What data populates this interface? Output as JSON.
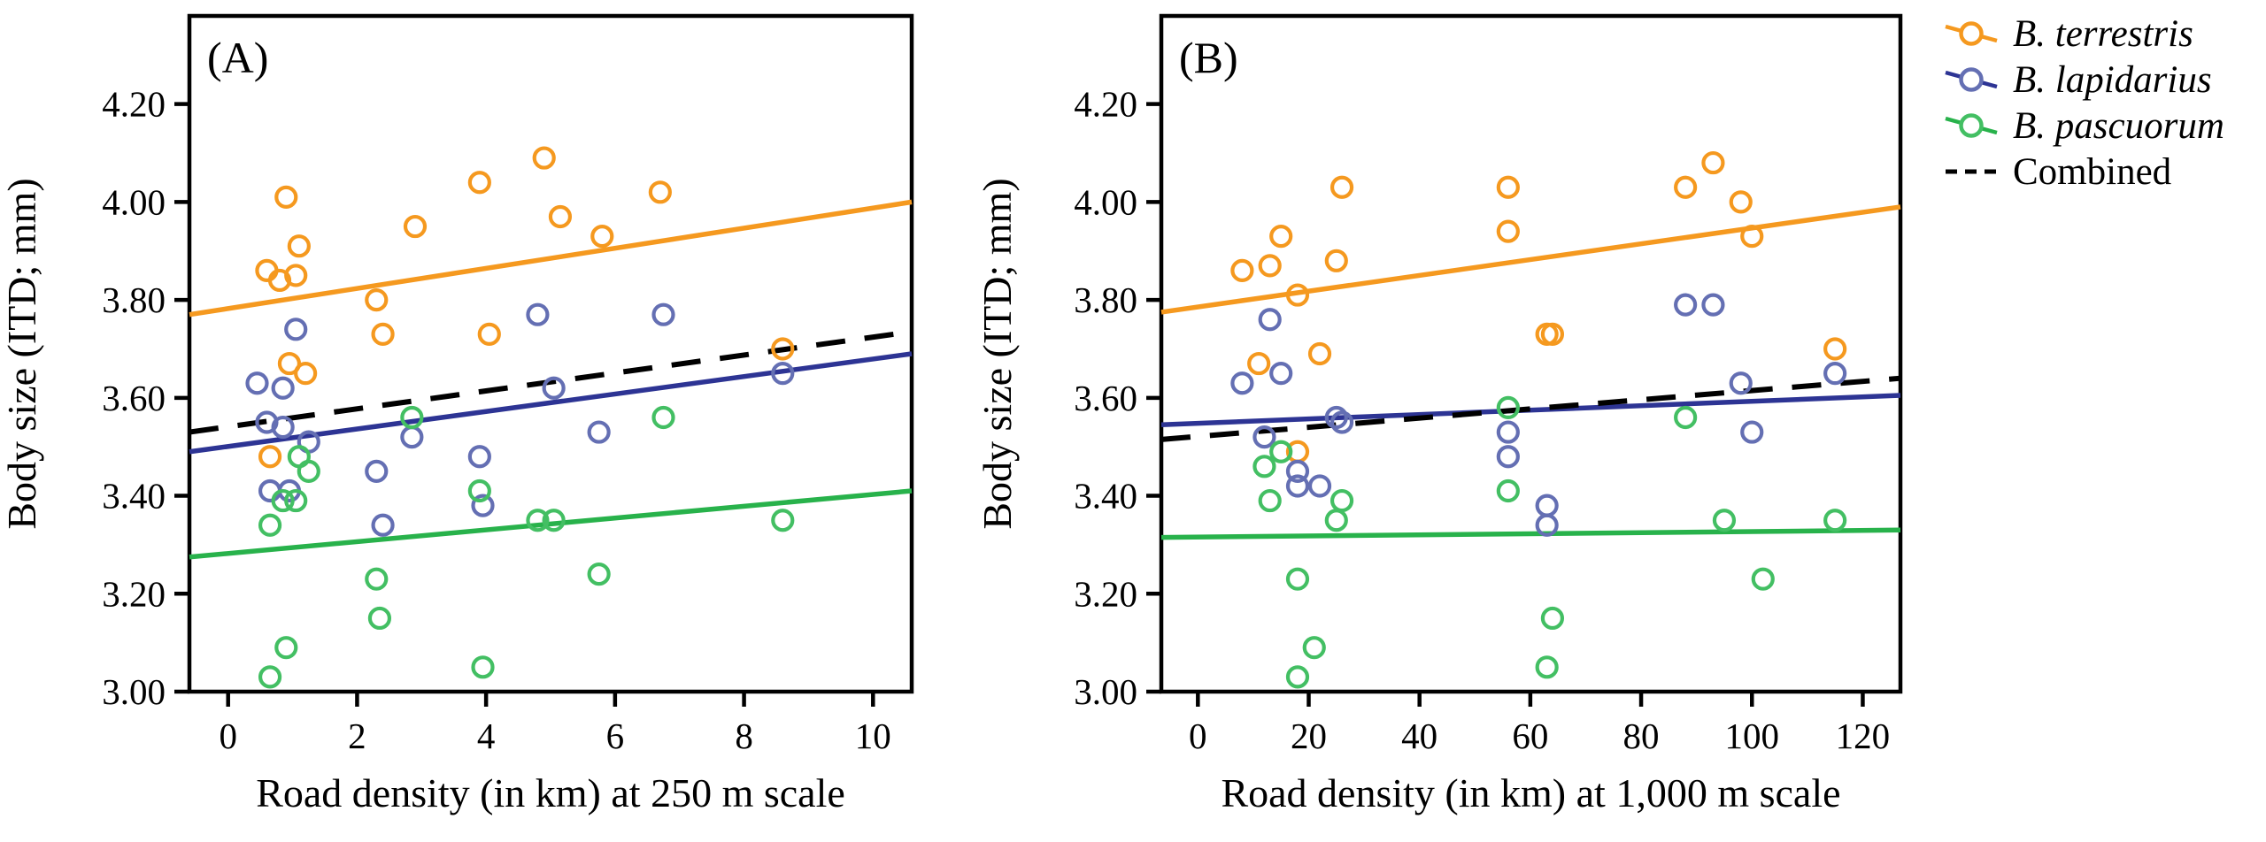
{
  "figure": {
    "background": "#ffffff",
    "y_axis_label": "Body size (ITD; mm)",
    "legend": [
      {
        "label": "B. terrestris",
        "line_color": "#F5991F",
        "marker_color": "#F5991F",
        "style": "solid",
        "italic": true
      },
      {
        "label": "B. lapidarius",
        "line_color": "#2D3494",
        "marker_color": "#646FB3",
        "style": "solid",
        "italic": true
      },
      {
        "label": "B. pascuorum",
        "line_color": "#28B24B",
        "marker_color": "#43BF63",
        "style": "solid",
        "italic": true
      },
      {
        "label": "Combined",
        "line_color": "#000000",
        "marker_color": "#000000",
        "style": "dashed",
        "italic": false
      }
    ]
  },
  "chart_data": [
    {
      "type": "scatter",
      "panel_label": "(A)",
      "xlabel": "Road density (in km) at 250 m scale",
      "ylabel": "Body size (ITD; mm)",
      "xlim": [
        -0.6,
        10.6
      ],
      "ylim": [
        3.0,
        4.38
      ],
      "x_ticks": [
        0,
        2,
        4,
        6,
        8,
        10
      ],
      "x_tick_labels": [
        "0",
        "2",
        "4",
        "6",
        "8",
        "10"
      ],
      "y_ticks": [
        3.0,
        3.2,
        3.4,
        3.6,
        3.8,
        4.0,
        4.2
      ],
      "y_tick_labels": [
        "3.00",
        "3.20",
        "3.40",
        "3.60",
        "3.80",
        "4.00",
        "4.20"
      ],
      "grid": false,
      "series": [
        {
          "name": "B. terrestris",
          "marker_color": "#F5991F",
          "line_color": "#F5991F",
          "dashed": false,
          "points": [
            [
              0.9,
              4.01
            ],
            [
              3.9,
              4.04
            ],
            [
              4.9,
              4.09
            ],
            [
              5.15,
              3.97
            ],
            [
              6.7,
              4.02
            ],
            [
              5.8,
              3.93
            ],
            [
              2.9,
              3.95
            ],
            [
              1.1,
              3.91
            ],
            [
              0.6,
              3.86
            ],
            [
              0.8,
              3.84
            ],
            [
              1.05,
              3.85
            ],
            [
              2.3,
              3.8
            ],
            [
              2.4,
              3.73
            ],
            [
              4.05,
              3.73
            ],
            [
              8.6,
              3.7
            ],
            [
              0.95,
              3.67
            ],
            [
              1.2,
              3.65
            ],
            [
              0.65,
              3.48
            ]
          ],
          "trend": {
            "x": [
              -0.6,
              10.6
            ],
            "y": [
              3.77,
              4.0
            ]
          }
        },
        {
          "name": "B. lapidarius",
          "marker_color": "#646FB3",
          "line_color": "#2D3494",
          "dashed": false,
          "points": [
            [
              1.05,
              3.74
            ],
            [
              0.45,
              3.63
            ],
            [
              0.85,
              3.62
            ],
            [
              0.6,
              3.55
            ],
            [
              0.85,
              3.54
            ],
            [
              1.25,
              3.51
            ],
            [
              0.65,
              3.41
            ],
            [
              0.95,
              3.41
            ],
            [
              2.85,
              3.52
            ],
            [
              2.3,
              3.45
            ],
            [
              2.4,
              3.34
            ],
            [
              3.9,
              3.48
            ],
            [
              3.95,
              3.38
            ],
            [
              4.8,
              3.77
            ],
            [
              5.05,
              3.62
            ],
            [
              5.75,
              3.53
            ],
            [
              6.75,
              3.77
            ],
            [
              8.6,
              3.65
            ]
          ],
          "trend": {
            "x": [
              -0.6,
              10.6
            ],
            "y": [
              3.49,
              3.69
            ]
          }
        },
        {
          "name": "B. pascuorum",
          "marker_color": "#43BF63",
          "line_color": "#28B24B",
          "dashed": false,
          "points": [
            [
              1.1,
              3.48
            ],
            [
              1.25,
              3.45
            ],
            [
              0.85,
              3.39
            ],
            [
              1.05,
              3.39
            ],
            [
              0.65,
              3.34
            ],
            [
              0.9,
              3.09
            ],
            [
              0.65,
              3.03
            ],
            [
              2.85,
              3.56
            ],
            [
              2.3,
              3.23
            ],
            [
              2.35,
              3.15
            ],
            [
              3.9,
              3.41
            ],
            [
              3.95,
              3.05
            ],
            [
              4.8,
              3.35
            ],
            [
              5.05,
              3.35
            ],
            [
              5.75,
              3.24
            ],
            [
              6.75,
              3.56
            ],
            [
              8.6,
              3.35
            ]
          ],
          "trend": {
            "x": [
              -0.6,
              10.6
            ],
            "y": [
              3.275,
              3.41
            ]
          }
        },
        {
          "name": "Combined",
          "marker_color": "#000000",
          "line_color": "#000000",
          "dashed": true,
          "points": [],
          "trend": {
            "x": [
              -0.6,
              10.6
            ],
            "y": [
              3.53,
              3.735
            ]
          }
        }
      ]
    },
    {
      "type": "scatter",
      "panel_label": "(B)",
      "xlabel": "Road density (in km) at 1,000 m scale",
      "ylabel": "Body size (ITD; mm)",
      "xlim": [
        -6.6,
        126.8
      ],
      "ylim": [
        3.0,
        4.38
      ],
      "x_ticks": [
        0,
        20,
        40,
        60,
        80,
        100,
        120
      ],
      "x_tick_labels": [
        "0",
        "20",
        "40",
        "60",
        "80",
        "100",
        "120"
      ],
      "y_ticks": [
        3.0,
        3.2,
        3.4,
        3.6,
        3.8,
        4.0,
        4.2
      ],
      "y_tick_labels": [
        "3.00",
        "3.20",
        "3.40",
        "3.60",
        "3.80",
        "4.00",
        "4.20"
      ],
      "grid": false,
      "series": [
        {
          "name": "B. terrestris",
          "marker_color": "#F5991F",
          "line_color": "#F5991F",
          "dashed": false,
          "points": [
            [
              8,
              3.86
            ],
            [
              13,
              3.87
            ],
            [
              15,
              3.93
            ],
            [
              18,
              3.81
            ],
            [
              25,
              3.88
            ],
            [
              26,
              4.03
            ],
            [
              11,
              3.67
            ],
            [
              22,
              3.69
            ],
            [
              18,
              3.49
            ],
            [
              56,
              4.03
            ],
            [
              56,
              3.94
            ],
            [
              63,
              3.73
            ],
            [
              64,
              3.73
            ],
            [
              88,
              4.03
            ],
            [
              93,
              4.08
            ],
            [
              98,
              4.0
            ],
            [
              100,
              3.93
            ],
            [
              115,
              3.7
            ]
          ],
          "trend": {
            "x": [
              -6.6,
              126.8
            ],
            "y": [
              3.775,
              3.99
            ]
          }
        },
        {
          "name": "B. lapidarius",
          "marker_color": "#646FB3",
          "line_color": "#2D3494",
          "dashed": false,
          "points": [
            [
              13,
              3.76
            ],
            [
              15,
              3.65
            ],
            [
              8,
              3.63
            ],
            [
              25,
              3.56
            ],
            [
              26,
              3.55
            ],
            [
              12,
              3.52
            ],
            [
              18,
              3.45
            ],
            [
              18,
              3.42
            ],
            [
              22,
              3.42
            ],
            [
              56,
              3.53
            ],
            [
              56,
              3.48
            ],
            [
              63,
              3.38
            ],
            [
              63,
              3.34
            ],
            [
              88,
              3.79
            ],
            [
              93,
              3.79
            ],
            [
              98,
              3.63
            ],
            [
              100,
              3.53
            ],
            [
              115,
              3.65
            ]
          ],
          "trend": {
            "x": [
              -6.6,
              126.8
            ],
            "y": [
              3.545,
              3.605
            ]
          }
        },
        {
          "name": "B. pascuorum",
          "marker_color": "#43BF63",
          "line_color": "#28B24B",
          "dashed": false,
          "points": [
            [
              15,
              3.49
            ],
            [
              12,
              3.46
            ],
            [
              13,
              3.39
            ],
            [
              26,
              3.39
            ],
            [
              25,
              3.35
            ],
            [
              18,
              3.23
            ],
            [
              21,
              3.09
            ],
            [
              18,
              3.03
            ],
            [
              56,
              3.58
            ],
            [
              56,
              3.41
            ],
            [
              64,
              3.15
            ],
            [
              63,
              3.05
            ],
            [
              88,
              3.56
            ],
            [
              95,
              3.35
            ],
            [
              102,
              3.23
            ],
            [
              115,
              3.35
            ]
          ],
          "trend": {
            "x": [
              -6.6,
              126.8
            ],
            "y": [
              3.315,
              3.33
            ]
          }
        },
        {
          "name": "Combined",
          "marker_color": "#000000",
          "line_color": "#000000",
          "dashed": true,
          "points": [],
          "trend": {
            "x": [
              -6.6,
              126.8
            ],
            "y": [
              3.515,
              3.64
            ]
          }
        }
      ]
    }
  ]
}
